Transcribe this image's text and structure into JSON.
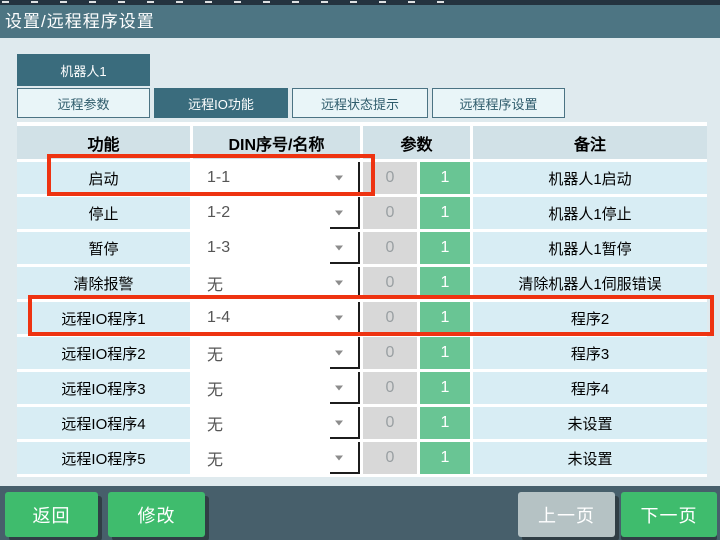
{
  "title_bar": {
    "title": "设置/远程程序设置"
  },
  "robot_tab": {
    "label": "机器人1"
  },
  "tabs": [
    {
      "label": "远程参数",
      "selected": false
    },
    {
      "label": "远程IO功能",
      "selected": true
    },
    {
      "label": "远程状态提示",
      "selected": false
    },
    {
      "label": "远程程序设置",
      "selected": false
    }
  ],
  "table": {
    "headers": [
      "功能",
      "DIN序号/名称",
      "参数",
      "备注"
    ],
    "rows": [
      {
        "func": "启动",
        "din": "1-1",
        "param0": "0",
        "param1": "1",
        "remark": "机器人1启动"
      },
      {
        "func": "停止",
        "din": "1-2",
        "param0": "0",
        "param1": "1",
        "remark": "机器人1停止"
      },
      {
        "func": "暂停",
        "din": "1-3",
        "param0": "0",
        "param1": "1",
        "remark": "机器人1暂停"
      },
      {
        "func": "清除报警",
        "din": "无",
        "param0": "0",
        "param1": "1",
        "remark": "清除机器人1伺服错误"
      },
      {
        "func": "远程IO程序1",
        "din": "1-4",
        "param0": "0",
        "param1": "1",
        "remark": "程序2"
      },
      {
        "func": "远程IO程序2",
        "din": "无",
        "param0": "0",
        "param1": "1",
        "remark": "程序3"
      },
      {
        "func": "远程IO程序3",
        "din": "无",
        "param0": "0",
        "param1": "1",
        "remark": "程序4"
      },
      {
        "func": "远程IO程序4",
        "din": "无",
        "param0": "0",
        "param1": "1",
        "remark": "未设置"
      },
      {
        "func": "远程IO程序5",
        "din": "无",
        "param0": "0",
        "param1": "1",
        "remark": "未设置"
      }
    ]
  },
  "footer": {
    "back_label": "返回",
    "modify_label": "修改",
    "prev_page_label": "上一页",
    "next_page_label": "下一页"
  },
  "colors": {
    "title_bar": "#4d7583",
    "accent_teal": "#3a6c7d",
    "row_bg": "#d8edf4",
    "header_bg": "#d1e1e7",
    "green_cell": "#69c594",
    "gray_cell": "#d8d8d8",
    "button_green": "#3fbc6d",
    "button_gray": "#b5c2c4",
    "footer_bar": "#475f6b",
    "highlight_red": "#ee3311"
  }
}
